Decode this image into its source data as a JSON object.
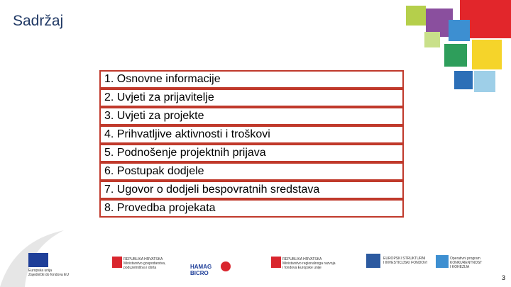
{
  "header": {
    "title": "Sadržaj"
  },
  "list": {
    "items": [
      "1. Osnovne informacije",
      "2. Uvjeti za prijavitelje",
      "3. Uvjeti za projekte",
      "4. Prihvatljive aktivnosti i troškovi",
      "5. Podnošenje projektnih prijava",
      "6. Postupak dodjele",
      "7. Ugovor o dodjeli bespovratnih sredstava",
      "8. Provedba projekata"
    ]
  },
  "footer": {
    "logos": [
      {
        "line1": "Europska unija",
        "line2": "Zajednički do fondova EU"
      },
      {
        "line1": "REPUBLIKA HRVATSKA",
        "line2": "Ministarstvo gospodarstva,",
        "line3": "poduzetništva i obrta"
      },
      {
        "line1": "HAMAG",
        "line2": "BICRO"
      },
      {
        "line1": "REPUBLIKA HRVATSKA",
        "line2": "Ministarstvo regionalnoga razvoja",
        "line3": "i fondova Europske unije"
      },
      {
        "line1": "EUROPSKI STRUKTURNI",
        "line2": "I INVESTICIJSKI FONDOVI"
      },
      {
        "line1": "Operativni program",
        "line2": "KONKURENTNOST",
        "line3": "I KOHEZIJA"
      }
    ]
  },
  "page_number": "3"
}
